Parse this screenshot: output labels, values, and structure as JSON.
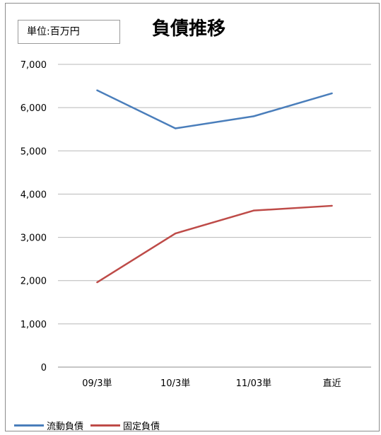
{
  "unit_label": "単位:百万円",
  "chart_data": {
    "type": "line",
    "title": "負債推移",
    "xlabel": "",
    "ylabel": "",
    "categories": [
      "09/3単",
      "10/3単",
      "11/03単",
      "直近"
    ],
    "ylim": [
      0,
      7000
    ],
    "yticks": [
      0,
      1000,
      2000,
      3000,
      4000,
      5000,
      6000,
      7000
    ],
    "ytick_labels": [
      "0",
      "1,000",
      "2,000",
      "3,000",
      "4,000",
      "5,000",
      "6,000",
      "7,000"
    ],
    "grid": true,
    "legend_position": "bottom-left",
    "series": [
      {
        "name": "流動負債",
        "color": "#4a7ebb",
        "values": [
          6400,
          5520,
          5800,
          6330
        ]
      },
      {
        "name": "固定負債",
        "color": "#be4b48",
        "values": [
          1960,
          3090,
          3620,
          3730
        ]
      }
    ]
  }
}
